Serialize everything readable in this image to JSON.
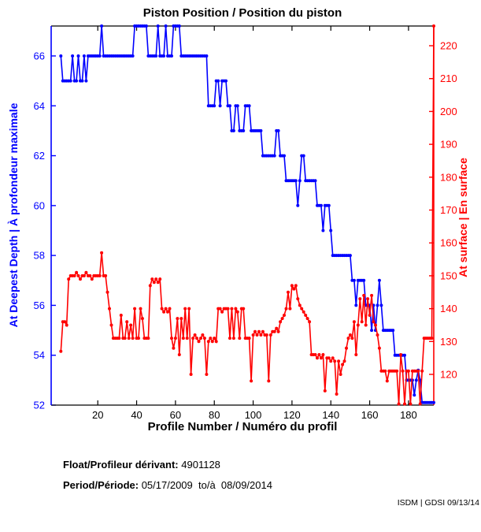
{
  "title": "Piston Position / Position du piston",
  "footer": {
    "float_label": "Float/Profileur dérivant:",
    "float_value": "4901128",
    "period_label": "Period/Période:",
    "period_value": "05/17/2009  to/à  08/09/2014",
    "credit": "ISDM | GDSI 09/13/14"
  },
  "chart_data": {
    "type": "line",
    "title": "Piston Position / Position du piston",
    "xlabel": "Profile Number / Numéro du profil",
    "grid": false,
    "legend": "none",
    "xlim": [
      -4,
      193
    ],
    "x_ticks": [
      20,
      40,
      60,
      80,
      100,
      120,
      140,
      160,
      180
    ],
    "left_axis": {
      "label": "At Deepest Depth | À profondeur maximale",
      "color": "#0000ff",
      "ticks": [
        52,
        54,
        56,
        58,
        60,
        62,
        64,
        66
      ],
      "ylim": [
        52,
        67.2
      ]
    },
    "right_axis": {
      "label": "At surface | En surface",
      "color": "#ff0000",
      "ticks": [
        120,
        130,
        140,
        150,
        160,
        170,
        180,
        190,
        200,
        210,
        220
      ],
      "ylim": [
        110.65,
        226
      ]
    },
    "series": [
      {
        "name": "At Deepest Depth / À profondeur maximale",
        "axis": "left",
        "color": "#0000ff",
        "marker": "dot",
        "x_start": 1,
        "x_step": 1,
        "values": [
          66,
          65,
          65,
          65,
          65,
          65,
          66,
          65,
          65,
          66,
          65,
          65,
          66,
          65,
          66,
          66,
          66,
          66,
          66,
          66,
          66,
          67.2,
          66,
          66,
          66,
          66,
          66,
          66,
          66,
          66,
          66,
          66,
          66,
          66,
          66,
          66,
          66,
          66,
          67.2,
          67.2,
          67.2,
          67.2,
          67.2,
          67.2,
          67.2,
          66,
          66,
          66,
          66,
          66,
          67.2,
          66,
          66,
          66,
          67.2,
          66,
          66,
          66,
          67.2,
          67.2,
          67.2,
          67.2,
          66,
          66,
          66,
          66,
          66,
          66,
          66,
          66,
          66,
          66,
          66,
          66,
          66,
          66,
          64,
          64,
          64,
          64,
          65,
          65,
          64,
          65,
          65,
          65,
          64,
          64,
          63,
          63,
          64,
          64,
          63,
          63,
          63,
          64,
          64,
          64,
          63,
          63,
          63,
          63,
          63,
          63,
          62,
          62,
          62,
          62,
          62,
          62,
          62,
          63,
          63,
          62,
          62,
          62,
          61,
          61,
          61,
          61,
          61,
          61,
          60,
          61,
          62,
          62,
          61,
          61,
          61,
          61,
          61,
          61,
          60,
          60,
          60,
          59,
          60,
          60,
          60,
          59,
          58,
          58,
          58,
          58,
          58,
          58,
          58,
          58,
          58,
          58,
          57,
          57,
          56,
          57,
          57,
          57,
          57,
          56,
          56,
          56,
          55,
          56,
          55,
          56,
          57,
          56,
          55,
          55,
          55,
          55,
          55,
          55,
          54,
          54,
          54,
          54,
          54,
          54,
          53,
          53,
          53,
          53,
          52.4,
          53,
          53.4,
          53,
          52.1,
          52.1,
          52.1,
          52.1,
          52.1,
          52.1,
          52.1
        ]
      },
      {
        "name": "At surface / En surface",
        "axis": "right",
        "color": "#ff0000",
        "marker": "dot",
        "x_start": 1,
        "x_step": 1,
        "values": [
          127,
          136,
          136,
          135,
          149,
          150,
          150,
          150,
          151,
          150,
          149,
          150,
          150,
          151,
          150,
          150,
          149,
          150,
          150,
          150,
          150,
          157,
          150,
          150,
          145,
          140,
          135,
          131,
          131,
          131,
          131,
          138,
          131,
          131,
          136,
          131,
          135,
          131,
          140,
          131,
          131,
          140,
          137,
          131,
          131,
          131,
          147,
          149,
          148,
          149,
          148,
          149,
          140,
          139,
          140,
          139,
          140,
          131,
          128,
          131,
          137,
          126,
          137,
          131,
          140,
          131,
          140,
          120,
          131,
          132,
          131,
          130,
          131,
          132,
          131,
          120,
          130,
          131,
          130,
          131,
          130,
          140,
          140,
          139,
          140,
          140,
          140,
          131,
          140,
          131,
          140,
          139,
          131,
          140,
          140,
          131,
          131,
          131,
          118,
          132,
          133,
          132,
          133,
          132,
          133,
          132,
          132,
          118,
          132,
          133,
          133,
          134,
          133,
          136,
          137,
          138,
          140,
          145,
          140,
          147,
          146,
          147,
          143,
          141,
          140,
          139,
          138,
          137,
          136,
          126,
          126,
          126,
          125,
          126,
          125,
          126,
          115,
          125,
          125,
          124,
          125,
          124,
          114,
          124,
          120,
          123,
          124,
          128,
          131,
          132,
          131,
          136,
          126,
          135,
          143,
          136,
          144,
          135,
          143,
          138,
          144,
          136,
          135,
          132,
          128,
          121,
          121,
          121,
          118,
          121,
          121,
          121,
          121,
          121,
          111,
          126,
          121,
          111,
          121,
          121,
          111,
          121,
          121,
          121,
          121,
          111,
          121,
          131,
          131,
          131,
          131,
          131,
          226
        ]
      }
    ]
  }
}
